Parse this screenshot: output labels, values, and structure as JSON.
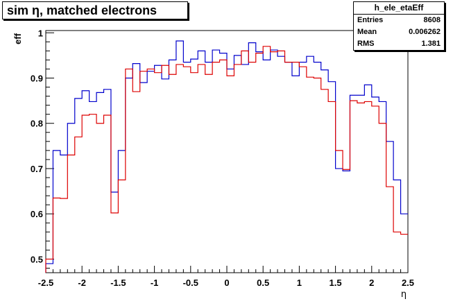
{
  "chart_data": {
    "type": "line",
    "title": "sim η,  matched electrons",
    "xlabel": "η",
    "ylabel": "eff",
    "xlim": [
      -2.5,
      2.5
    ],
    "ylim": [
      0.47,
      1.005
    ],
    "grid": false,
    "x_ticks": [
      {
        "value": -2.5,
        "label": "-2.5"
      },
      {
        "value": -2,
        "label": "-2"
      },
      {
        "value": -1.5,
        "label": "-1.5"
      },
      {
        "value": -1,
        "label": "-1"
      },
      {
        "value": -0.5,
        "label": "-0.5"
      },
      {
        "value": 0,
        "label": "0"
      },
      {
        "value": 0.5,
        "label": "0.5"
      },
      {
        "value": 1,
        "label": "1"
      },
      {
        "value": 1.5,
        "label": "1.5"
      },
      {
        "value": 2,
        "label": "2"
      },
      {
        "value": 2.5,
        "label": "2.5"
      }
    ],
    "y_ticks": [
      {
        "value": 0.5,
        "label": "0.5"
      },
      {
        "value": 0.6,
        "label": "0.6"
      },
      {
        "value": 0.7,
        "label": "0.7"
      },
      {
        "value": 0.8,
        "label": "0.8"
      },
      {
        "value": 0.9,
        "label": "0.9"
      },
      {
        "value": 1,
        "label": "1"
      }
    ],
    "bin_edges_start": -2.5,
    "bin_width": 0.1,
    "series": [
      {
        "color": "#0000cc",
        "values": [
          0.49,
          0.74,
          0.73,
          0.8,
          0.855,
          0.872,
          0.848,
          0.868,
          0.875,
          0.648,
          0.74,
          0.9,
          0.932,
          0.89,
          0.915,
          0.928,
          0.898,
          0.94,
          0.982,
          0.935,
          0.942,
          0.96,
          0.935,
          0.962,
          0.955,
          0.92,
          0.95,
          0.93,
          0.978,
          0.958,
          0.94,
          0.962,
          0.948,
          0.935,
          0.905,
          0.935,
          0.948,
          0.935,
          0.918,
          0.892,
          0.7,
          0.695,
          0.862,
          0.862,
          0.885,
          0.858,
          0.848,
          0.76,
          0.675,
          0.6
        ]
      },
      {
        "color": "#dd0000",
        "values": [
          0.5,
          0.635,
          0.634,
          0.73,
          0.77,
          0.818,
          0.82,
          0.8,
          0.818,
          0.602,
          0.675,
          0.92,
          0.87,
          0.915,
          0.92,
          0.912,
          0.928,
          0.908,
          0.93,
          0.925,
          0.912,
          0.93,
          0.908,
          0.935,
          0.94,
          0.905,
          0.93,
          0.96,
          0.935,
          0.955,
          0.97,
          0.958,
          0.96,
          0.935,
          0.935,
          0.925,
          0.902,
          0.9,
          0.875,
          0.848,
          0.74,
          0.698,
          0.85,
          0.845,
          0.848,
          0.838,
          0.8,
          0.66,
          0.56,
          0.555
        ]
      }
    ]
  },
  "stats": {
    "name": "h_ele_etaEff",
    "rows": [
      {
        "key": "Entries",
        "value": "8608"
      },
      {
        "key": "Mean",
        "value": "0.006262"
      },
      {
        "key": "RMS",
        "value": "1.381"
      }
    ]
  }
}
